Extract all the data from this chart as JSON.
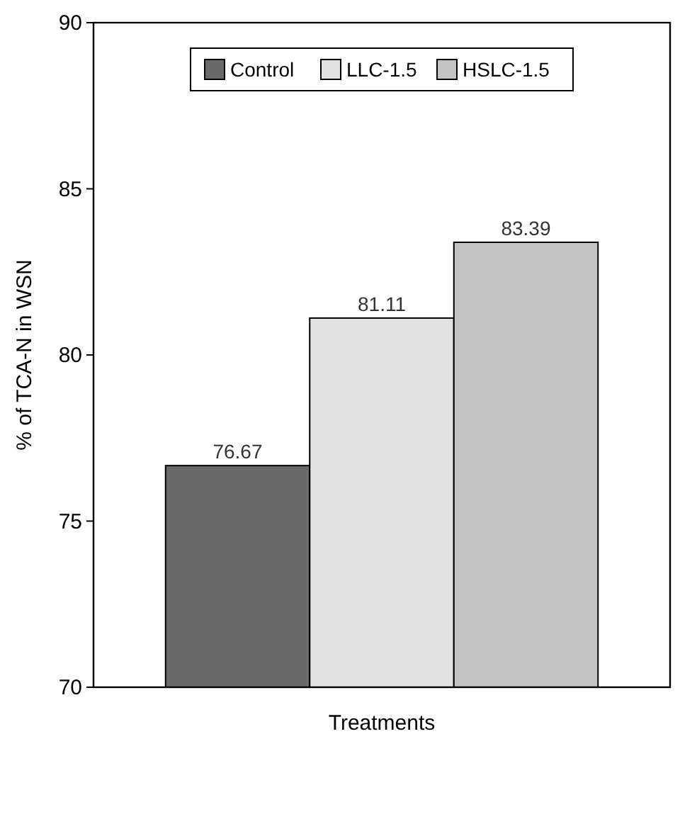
{
  "chart_data": {
    "type": "bar",
    "xlabel": "Treatments",
    "ylabel": "% of TCA-N in WSN",
    "categories": [
      null
    ],
    "series": [
      {
        "name": "Control",
        "color": "#6a6a6a",
        "values": [
          76.67
        ]
      },
      {
        "name": "LLC-1.5",
        "color": "#e2e2e2",
        "values": [
          81.11
        ]
      },
      {
        "name": "HSLC-1.5",
        "color": "#c4c4c4",
        "values": [
          83.39
        ]
      }
    ],
    "ylim": [
      70,
      90
    ],
    "yticks": [
      70,
      75,
      80,
      85,
      90
    ],
    "data_labels": true,
    "legend": "top",
    "grid": false
  }
}
